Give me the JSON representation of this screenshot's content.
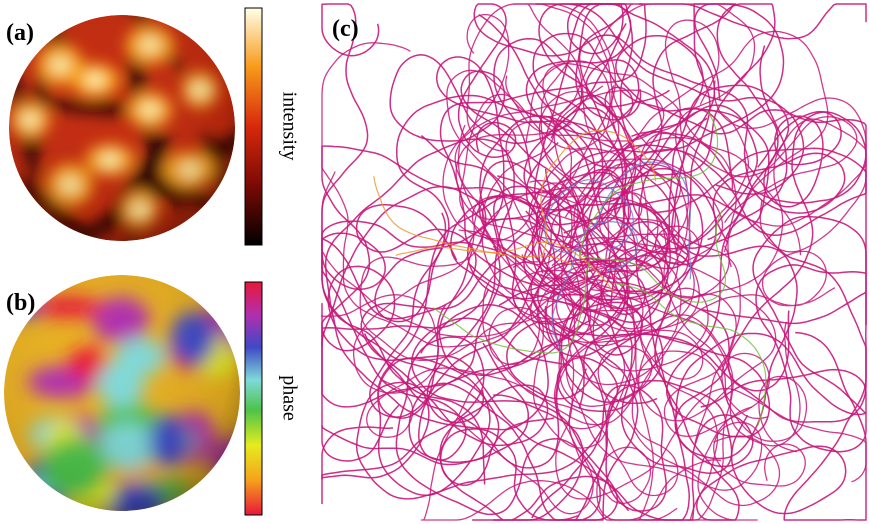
{
  "panels": [
    {
      "label": "(a)",
      "colorbar_label": "intensity"
    },
    {
      "label": "(b)",
      "colorbar_label": "phase"
    },
    {
      "label": "(c)"
    }
  ]
}
